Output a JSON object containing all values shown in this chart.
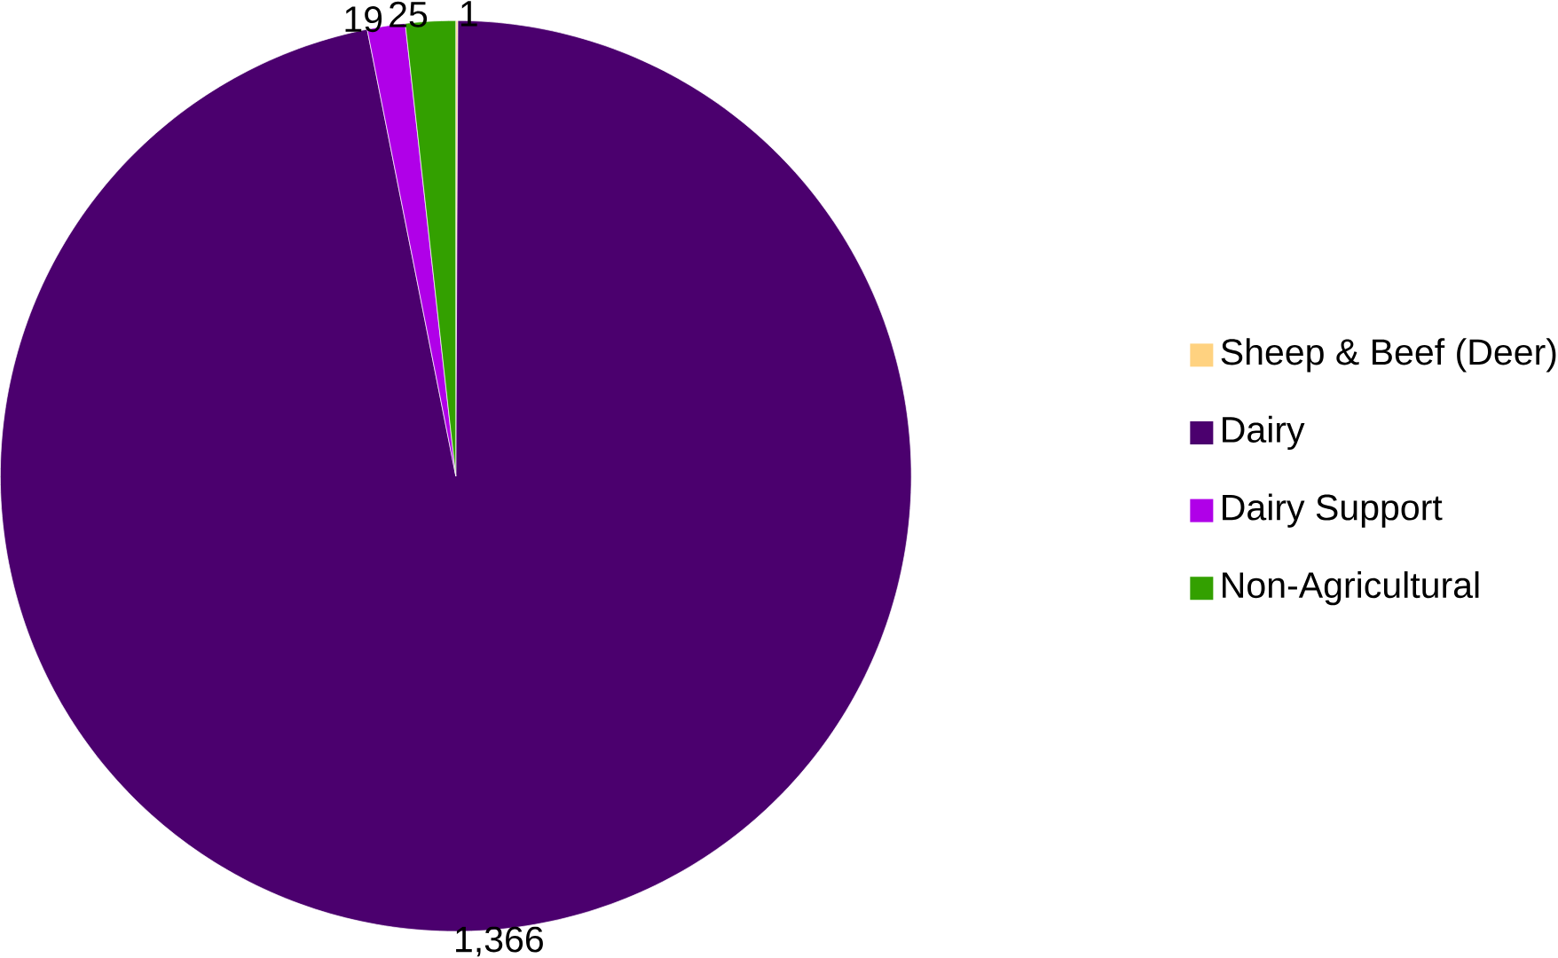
{
  "chart_data": {
    "type": "pie",
    "categories": [
      "Sheep & Beef (Deer)",
      "Dairy",
      "Dairy Support",
      "Non-Agricultural"
    ],
    "values": [
      1,
      1366,
      19,
      25
    ],
    "value_labels": [
      "1",
      "1,366",
      "19",
      "25"
    ],
    "colors": [
      "#ffd280",
      "#4b006e",
      "#b000e8",
      "#33a000"
    ],
    "legend": "right"
  }
}
